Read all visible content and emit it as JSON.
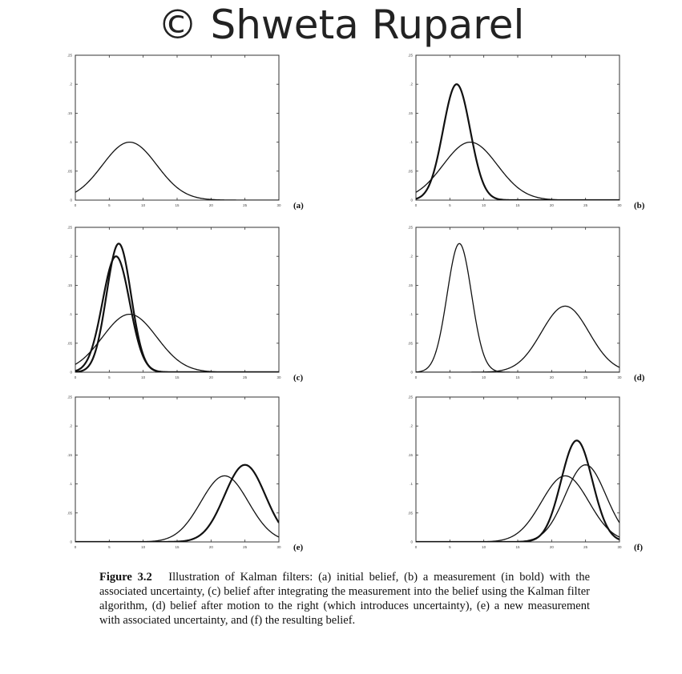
{
  "watermark": "© Shweta Ruparel",
  "caption": {
    "figure_label": "Figure 3.2",
    "text": "Illustration of Kalman filters: (a) initial belief, (b) a measurement (in bold) with the associated uncertainty, (c) belief after integrating the measurement into the belief using the Kalman filter algorithm, (d) belief after motion to the right (which introduces uncertainty), (e) a new measurement with associated uncertainty, and (f) the resulting belief."
  },
  "chart_data": [
    {
      "panel": "(a)",
      "type": "line",
      "xlim": [
        0,
        30
      ],
      "ylim": [
        0,
        0.25
      ],
      "xticks": [
        0,
        5,
        10,
        15,
        20,
        25,
        30
      ],
      "yticks": [
        0,
        0.05,
        0.1,
        0.15,
        0.2,
        0.25
      ],
      "series": [
        {
          "mean": 8,
          "sd": 4,
          "peak": 0.1,
          "bold": false
        }
      ]
    },
    {
      "panel": "(b)",
      "type": "line",
      "xlim": [
        0,
        30
      ],
      "ylim": [
        0,
        0.25
      ],
      "xticks": [
        0,
        5,
        10,
        15,
        20,
        25,
        30
      ],
      "yticks": [
        0,
        0.05,
        0.1,
        0.15,
        0.2,
        0.25
      ],
      "series": [
        {
          "mean": 8,
          "sd": 4,
          "peak": 0.1,
          "bold": false
        },
        {
          "mean": 6,
          "sd": 2,
          "peak": 0.2,
          "bold": true
        }
      ]
    },
    {
      "panel": "(c)",
      "type": "line",
      "xlim": [
        0,
        30
      ],
      "ylim": [
        0,
        0.25
      ],
      "xticks": [
        0,
        5,
        10,
        15,
        20,
        25,
        30
      ],
      "yticks": [
        0,
        0.05,
        0.1,
        0.15,
        0.2,
        0.25
      ],
      "series": [
        {
          "mean": 8,
          "sd": 4,
          "peak": 0.1,
          "bold": false
        },
        {
          "mean": 6,
          "sd": 2,
          "peak": 0.2,
          "bold": true
        },
        {
          "mean": 6.4,
          "sd": 1.8,
          "peak": 0.222,
          "bold": true
        }
      ]
    },
    {
      "panel": "(d)",
      "type": "line",
      "xlim": [
        0,
        30
      ],
      "ylim": [
        0,
        0.25
      ],
      "xticks": [
        0,
        5,
        10,
        15,
        20,
        25,
        30
      ],
      "yticks": [
        0,
        0.05,
        0.1,
        0.15,
        0.2,
        0.25
      ],
      "series": [
        {
          "mean": 6.4,
          "sd": 1.8,
          "peak": 0.222,
          "bold": false
        },
        {
          "mean": 22,
          "sd": 3.5,
          "peak": 0.114,
          "bold": false
        }
      ]
    },
    {
      "panel": "(e)",
      "type": "line",
      "xlim": [
        0,
        30
      ],
      "ylim": [
        0,
        0.25
      ],
      "xticks": [
        0,
        5,
        10,
        15,
        20,
        25,
        30
      ],
      "yticks": [
        0,
        0.05,
        0.1,
        0.15,
        0.2,
        0.25
      ],
      "series": [
        {
          "mean": 22,
          "sd": 3.5,
          "peak": 0.114,
          "bold": false
        },
        {
          "mean": 25,
          "sd": 3,
          "peak": 0.133,
          "bold": true
        }
      ]
    },
    {
      "panel": "(f)",
      "type": "line",
      "xlim": [
        0,
        30
      ],
      "ylim": [
        0,
        0.25
      ],
      "xticks": [
        0,
        5,
        10,
        15,
        20,
        25,
        30
      ],
      "yticks": [
        0,
        0.05,
        0.1,
        0.15,
        0.2,
        0.25
      ],
      "series": [
        {
          "mean": 22,
          "sd": 3.5,
          "peak": 0.114,
          "bold": false
        },
        {
          "mean": 25,
          "sd": 3,
          "peak": 0.133,
          "bold": false
        },
        {
          "mean": 23.7,
          "sd": 2.3,
          "peak": 0.175,
          "bold": true
        }
      ]
    }
  ]
}
